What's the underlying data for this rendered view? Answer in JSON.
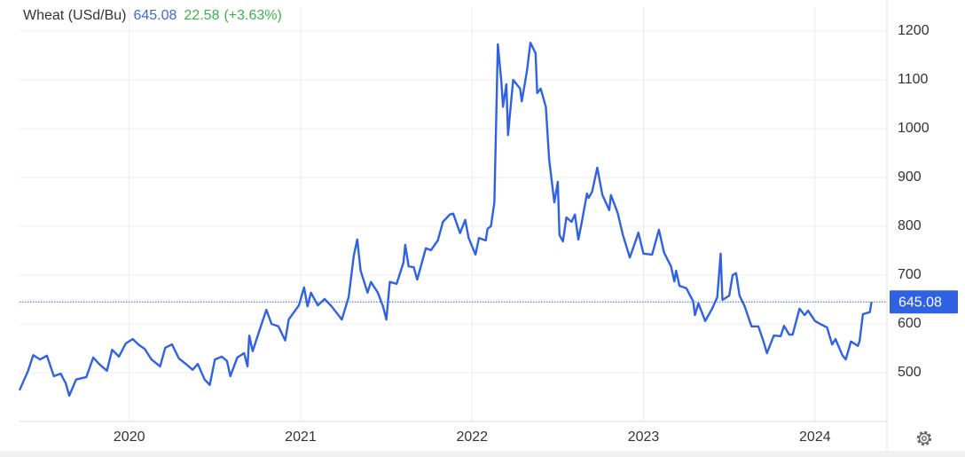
{
  "header": {
    "title": "Wheat (USd/Bu)",
    "last": 645.08,
    "change": 22.58,
    "change_percent": "(+3.63%)"
  },
  "chart_data": {
    "type": "line",
    "color": "#2f62e3",
    "grid": true,
    "last_value": 645.08,
    "xlim": [
      2019.36,
      2024.42
    ],
    "xticks": [
      2020,
      2021,
      2022,
      2023,
      2024
    ],
    "ylim": [
      400,
      1250
    ],
    "yticks": [
      500,
      600,
      700,
      800,
      900,
      1000,
      1100,
      1200
    ],
    "x": [
      2019.36,
      2019.41,
      2019.44,
      2019.48,
      2019.52,
      2019.56,
      2019.6,
      2019.63,
      2019.65,
      2019.69,
      2019.75,
      2019.79,
      2019.83,
      2019.87,
      2019.9,
      2019.94,
      2019.98,
      2020.02,
      2020.06,
      2020.09,
      2020.13,
      2020.18,
      2020.21,
      2020.25,
      2020.29,
      2020.33,
      2020.37,
      2020.4,
      2020.44,
      2020.47,
      2020.5,
      2020.54,
      2020.57,
      2020.59,
      2020.63,
      2020.67,
      2020.69,
      2020.7,
      2020.72,
      2020.76,
      2020.8,
      2020.83,
      2020.87,
      2020.91,
      2020.93,
      2020.99,
      2021.02,
      2021.04,
      2021.06,
      2021.1,
      2021.14,
      2021.18,
      2021.24,
      2021.28,
      2021.31,
      2021.33,
      2021.35,
      2021.39,
      2021.41,
      2021.45,
      2021.48,
      2021.5,
      2021.52,
      2021.56,
      2021.6,
      2021.61,
      2021.63,
      2021.66,
      2021.68,
      2021.73,
      2021.76,
      2021.8,
      2021.83,
      2021.87,
      2021.89,
      2021.93,
      2021.96,
      2021.98,
      2022.02,
      2022.04,
      2022.08,
      2022.09,
      2022.11,
      2022.13,
      2022.15,
      2022.17,
      2022.18,
      2022.2,
      2022.21,
      2022.23,
      2022.24,
      2022.28,
      2022.29,
      2022.32,
      2022.34,
      2022.37,
      2022.38,
      2022.4,
      2022.43,
      2022.45,
      2022.48,
      2022.5,
      2022.51,
      2022.53,
      2022.55,
      2022.58,
      2022.6,
      2022.62,
      2022.64,
      2022.67,
      2022.68,
      2022.7,
      2022.73,
      2022.76,
      2022.8,
      2022.81,
      2022.85,
      2022.88,
      2022.92,
      2022.96,
      2022.97,
      2023.0,
      2023.05,
      2023.09,
      2023.12,
      2023.16,
      2023.18,
      2023.19,
      2023.21,
      2023.25,
      2023.29,
      2023.3,
      2023.32,
      2023.36,
      2023.4,
      2023.43,
      2023.45,
      2023.46,
      2023.5,
      2023.52,
      2023.54,
      2023.56,
      2023.59,
      2023.63,
      2023.67,
      2023.7,
      2023.72,
      2023.76,
      2023.8,
      2023.82,
      2023.85,
      2023.87,
      2023.91,
      2023.94,
      2023.96,
      2024.0,
      2024.03,
      2024.07,
      2024.1,
      2024.12,
      2024.16,
      2024.18,
      2024.21,
      2024.25,
      2024.26,
      2024.28,
      2024.32,
      2024.33
    ],
    "series": [
      {
        "name": "Wheat",
        "color": "#2f62e3",
        "values": [
          464,
          504,
          536,
          527,
          535,
          493,
          498,
          478,
          453,
          486,
          491,
          531,
          516,
          504,
          547,
          533,
          560,
          569,
          556,
          549,
          527,
          513,
          551,
          558,
          529,
          518,
          506,
          518,
          486,
          475,
          527,
          533,
          524,
          493,
          531,
          540,
          513,
          576,
          544,
          587,
          629,
          600,
          595,
          566,
          609,
          638,
          675,
          636,
          664,
          638,
          651,
          636,
          609,
          655,
          740,
          773,
          709,
          664,
          686,
          664,
          636,
          609,
          686,
          682,
          726,
          762,
          718,
          716,
          691,
          755,
          751,
          771,
          809,
          824,
          826,
          786,
          813,
          776,
          742,
          776,
          771,
          795,
          800,
          849,
          1173,
          1100,
          1045,
          1091,
          987,
          1064,
          1100,
          1082,
          1056,
          1118,
          1176,
          1155,
          1073,
          1082,
          1045,
          936,
          849,
          891,
          782,
          769,
          818,
          809,
          824,
          773,
          809,
          867,
          858,
          871,
          920,
          864,
          833,
          864,
          827,
          782,
          736,
          776,
          787,
          744,
          742,
          793,
          746,
          718,
          687,
          709,
          678,
          673,
          646,
          618,
          642,
          606,
          631,
          655,
          744,
          649,
          658,
          700,
          704,
          658,
          636,
          595,
          595,
          564,
          540,
          576,
          575,
          596,
          578,
          578,
          631,
          618,
          627,
          606,
          600,
          593,
          558,
          569,
          536,
          527,
          564,
          555,
          564,
          620,
          624,
          645.08
        ]
      }
    ]
  }
}
